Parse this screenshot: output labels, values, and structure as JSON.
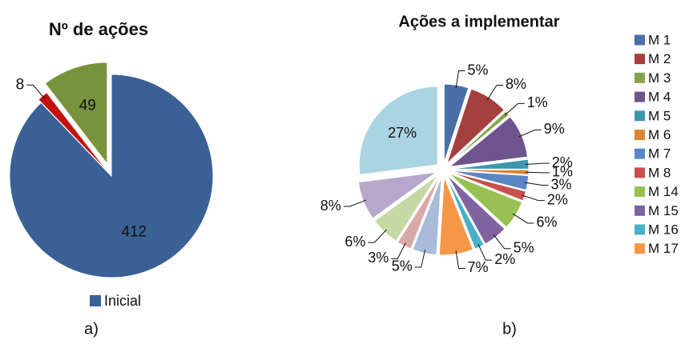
{
  "chart_data": [
    {
      "type": "pie",
      "title": "Nº de ações",
      "caption": "a)",
      "categories": [
        "Inicial",
        null,
        null
      ],
      "values": [
        412,
        8,
        49
      ],
      "colors": [
        "#3b6095",
        "#c0120f",
        "#77933c"
      ]
    },
    {
      "type": "pie",
      "title": "Ações a implementar",
      "caption": "b)",
      "categories": [
        "M 1",
        "M 2",
        "M 3",
        "M 4",
        "M 5",
        "M 6",
        "M 7",
        "M 8",
        "M 14",
        "M 15",
        "M 16",
        "M 17",
        null,
        null,
        null,
        null,
        null
      ],
      "values": [
        5,
        8,
        1,
        9,
        2,
        1,
        3,
        2,
        6,
        5,
        2,
        7,
        5,
        3,
        6,
        8,
        27
      ],
      "value_labels": [
        "5%",
        "8%",
        "1%",
        "9%",
        "2%",
        "1%",
        "3%",
        "2%",
        "6%",
        "5%",
        "2%",
        "7%",
        "5%",
        "3%",
        "6%",
        "8%",
        "27%"
      ],
      "colors": [
        "#4a6fa8",
        "#a6403e",
        "#86a44a",
        "#6e548d",
        "#3c98ae",
        "#d98534",
        "#5a86c6",
        "#c9504d",
        "#98c052",
        "#7f63a1",
        "#49b0c8",
        "#f79646",
        "#a9bbd9",
        "#d9a9a8",
        "#c6d8a4",
        "#b7a8cb",
        "#aad4e2"
      ]
    }
  ]
}
